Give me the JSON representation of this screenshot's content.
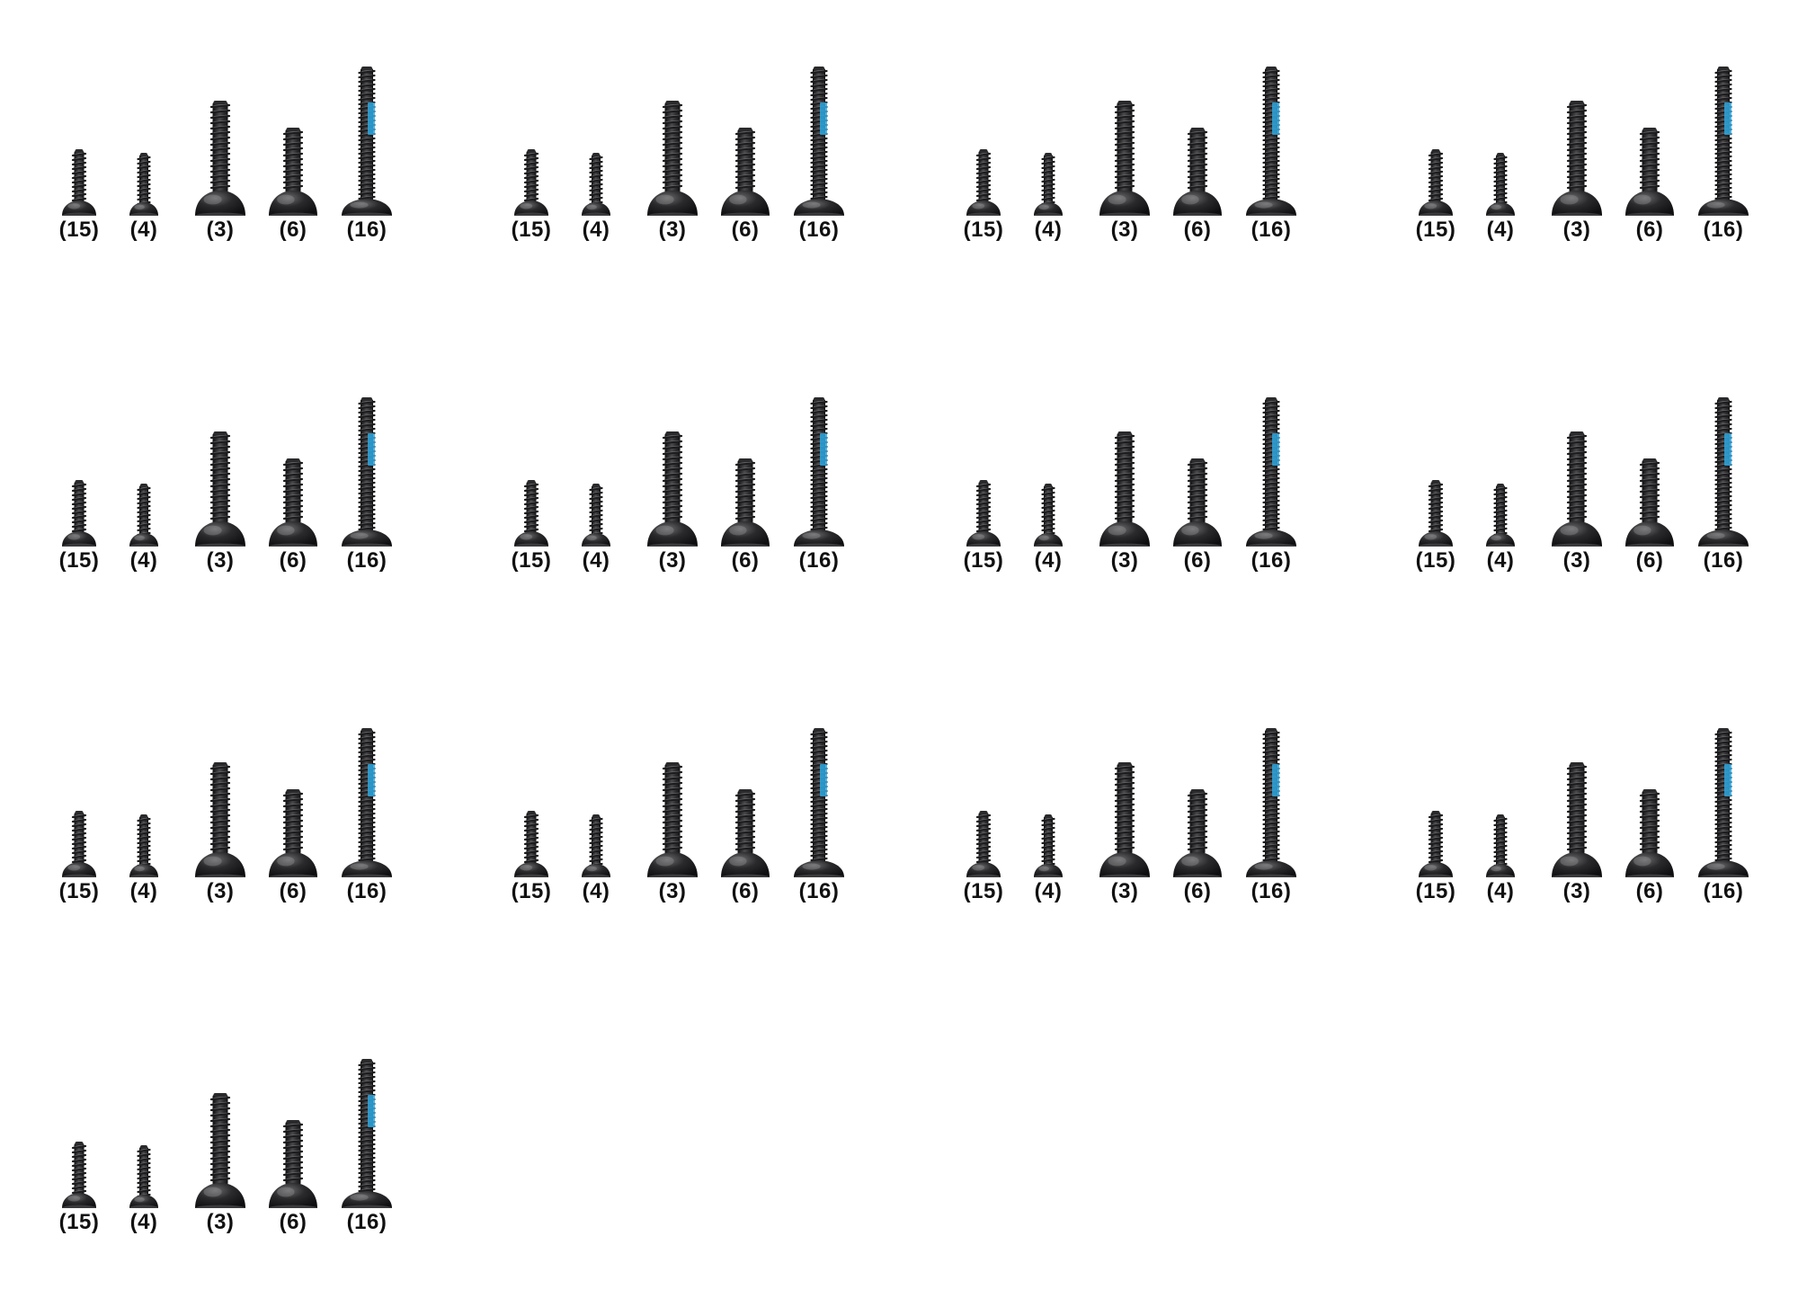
{
  "screw_sets": [
    {
      "screws": [
        {
          "label": "(15)"
        },
        {
          "label": "(4)"
        },
        {
          "label": "(3)"
        },
        {
          "label": "(6)"
        },
        {
          "label": "(16)"
        }
      ]
    },
    {
      "screws": [
        {
          "label": "(15)"
        },
        {
          "label": "(4)"
        },
        {
          "label": "(3)"
        },
        {
          "label": "(6)"
        },
        {
          "label": "(16)"
        }
      ]
    },
    {
      "screws": [
        {
          "label": "(15)"
        },
        {
          "label": "(4)"
        },
        {
          "label": "(3)"
        },
        {
          "label": "(6)"
        },
        {
          "label": "(16)"
        }
      ]
    },
    {
      "screws": [
        {
          "label": "(15)"
        },
        {
          "label": "(4)"
        },
        {
          "label": "(3)"
        },
        {
          "label": "(6)"
        },
        {
          "label": "(16)"
        }
      ]
    },
    {
      "screws": [
        {
          "label": "(15)"
        },
        {
          "label": "(4)"
        },
        {
          "label": "(3)"
        },
        {
          "label": "(6)"
        },
        {
          "label": "(16)"
        }
      ]
    },
    {
      "screws": [
        {
          "label": "(15)"
        },
        {
          "label": "(4)"
        },
        {
          "label": "(3)"
        },
        {
          "label": "(6)"
        },
        {
          "label": "(16)"
        }
      ]
    },
    {
      "screws": [
        {
          "label": "(15)"
        },
        {
          "label": "(4)"
        },
        {
          "label": "(3)"
        },
        {
          "label": "(6)"
        },
        {
          "label": "(16)"
        }
      ]
    },
    {
      "screws": [
        {
          "label": "(15)"
        },
        {
          "label": "(4)"
        },
        {
          "label": "(3)"
        },
        {
          "label": "(6)"
        },
        {
          "label": "(16)"
        }
      ]
    },
    {
      "screws": [
        {
          "label": "(15)"
        },
        {
          "label": "(4)"
        },
        {
          "label": "(3)"
        },
        {
          "label": "(6)"
        },
        {
          "label": "(16)"
        }
      ]
    },
    {
      "screws": [
        {
          "label": "(15)"
        },
        {
          "label": "(4)"
        },
        {
          "label": "(3)"
        },
        {
          "label": "(6)"
        },
        {
          "label": "(16)"
        }
      ]
    },
    {
      "screws": [
        {
          "label": "(15)"
        },
        {
          "label": "(4)"
        },
        {
          "label": "(3)"
        },
        {
          "label": "(6)"
        },
        {
          "label": "(16)"
        }
      ]
    },
    {
      "screws": [
        {
          "label": "(15)"
        },
        {
          "label": "(4)"
        },
        {
          "label": "(3)"
        },
        {
          "label": "(6)"
        },
        {
          "label": "(16)"
        }
      ]
    },
    {
      "screws": [
        {
          "label": "(15)"
        },
        {
          "label": "(4)"
        },
        {
          "label": "(3)"
        },
        {
          "label": "(6)"
        },
        {
          "label": "(16)"
        }
      ]
    }
  ],
  "colors": {
    "background": "#ffffff",
    "screw_dark": "#1b1b1d",
    "screw_highlight": "#8a8a8a",
    "threadlock_blue": "#2fa8e0",
    "label_text": "#111111"
  }
}
